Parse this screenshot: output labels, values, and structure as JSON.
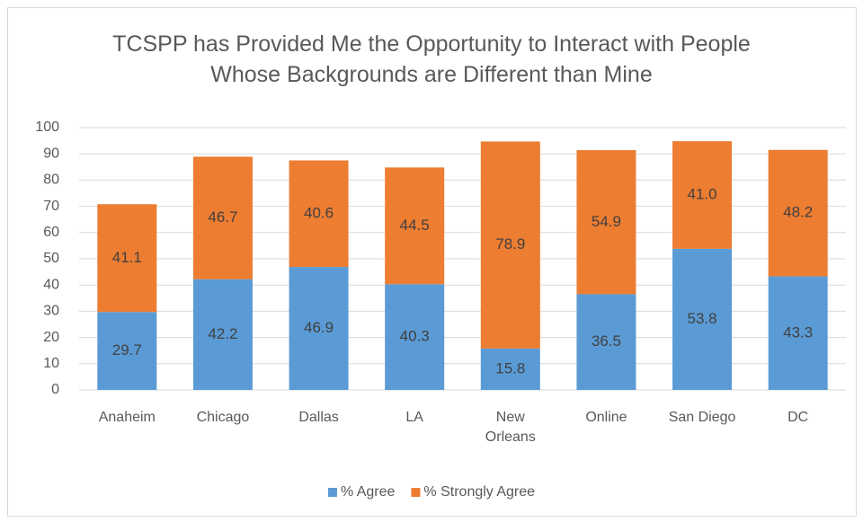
{
  "chart_data": {
    "type": "stacked_bar",
    "title": "TCSPP has Provided Me the Opportunity to Interact with People Whose Backgrounds are Different than Mine",
    "categories": [
      "Anaheim",
      "Chicago",
      "Dallas",
      "LA",
      "New Orleans",
      "Online",
      "San Diego",
      "DC"
    ],
    "series": [
      {
        "name": "% Agree",
        "color": "#5b9bd5",
        "values": [
          29.7,
          42.2,
          46.9,
          40.3,
          15.8,
          36.5,
          53.8,
          43.3
        ],
        "value_labels": [
          "29.7",
          "42.2",
          "46.9",
          "40.3",
          "15.8",
          "36.5",
          "53.8",
          "43.3"
        ]
      },
      {
        "name": "% Strongly Agree",
        "color": "#ed7d31",
        "values": [
          41.1,
          46.7,
          40.6,
          44.5,
          78.9,
          54.9,
          41.0,
          48.2
        ],
        "value_labels": [
          "41.1",
          "46.7",
          "40.6",
          "44.5",
          "78.9",
          "54.9",
          "41.0",
          "48.2"
        ]
      }
    ],
    "ylim": [
      0,
      100
    ],
    "yticks": [
      0,
      10,
      20,
      30,
      40,
      50,
      60,
      70,
      80,
      90,
      100
    ],
    "grid": true,
    "legend": "bottom"
  }
}
